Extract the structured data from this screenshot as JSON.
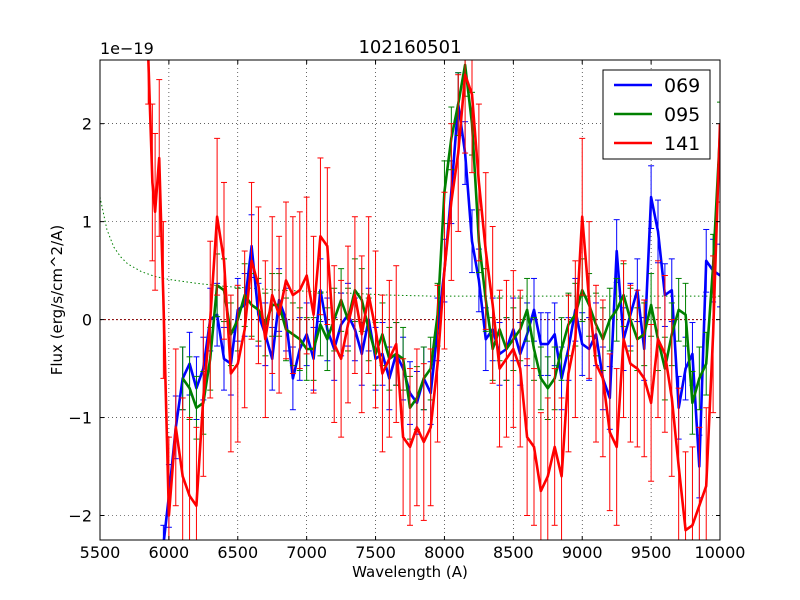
{
  "chart_data": {
    "type": "line",
    "title": "102160501",
    "xlabel": "Wavelength (A)",
    "ylabel": "Flux (erg/s/cm^2/A)",
    "offset_label": "1e−19",
    "xlim": [
      5500,
      10000
    ],
    "ylim": [
      -2.25,
      2.65
    ],
    "x_ticks": [
      5500,
      6000,
      6500,
      7000,
      7500,
      8000,
      8500,
      9000,
      9500,
      10000
    ],
    "y_ticks": [
      -2,
      -1,
      0,
      1,
      2
    ],
    "grid": true,
    "legend_position": "top-right",
    "zero_line": {
      "y": 0,
      "color": "#8b0000"
    },
    "noise_curve": {
      "color": "#008000",
      "x": [
        5500,
        5550,
        5600,
        5650,
        5700,
        5800,
        5900,
        6000,
        6200,
        6400,
        6600,
        6800,
        7000,
        7300,
        7600,
        7900,
        8100,
        8300,
        8600,
        9000,
        9400,
        9800,
        10000
      ],
      "y": [
        1.25,
        0.92,
        0.74,
        0.64,
        0.57,
        0.49,
        0.44,
        0.41,
        0.37,
        0.34,
        0.32,
        0.3,
        0.29,
        0.27,
        0.25,
        0.24,
        0.24,
        0.24,
        0.24,
        0.24,
        0.24,
        0.24,
        0.24
      ]
    },
    "series": [
      {
        "name": "069",
        "color": "#0000ff",
        "x": [
          5960,
          6000,
          6050,
          6100,
          6150,
          6200,
          6250,
          6300,
          6350,
          6400,
          6450,
          6500,
          6550,
          6600,
          6650,
          6700,
          6750,
          6800,
          6850,
          6900,
          6950,
          7000,
          7050,
          7100,
          7150,
          7200,
          7250,
          7300,
          7350,
          7400,
          7450,
          7500,
          7550,
          7600,
          7650,
          7700,
          7750,
          7800,
          7850,
          7900,
          7950,
          8000,
          8050,
          8100,
          8150,
          8200,
          8250,
          8300,
          8350,
          8400,
          8450,
          8500,
          8550,
          8600,
          8650,
          8700,
          8750,
          8800,
          8850,
          8900,
          8950,
          9000,
          9050,
          9100,
          9150,
          9200,
          9250,
          9300,
          9350,
          9400,
          9450,
          9500,
          9550,
          9600,
          9650,
          9700,
          9750,
          9800,
          9850,
          9900,
          9950,
          10000
        ],
        "y": [
          -2.3,
          -1.8,
          -1.1,
          -0.6,
          -0.45,
          -0.7,
          -0.5,
          0.0,
          0.05,
          -0.4,
          -0.45,
          0.1,
          0.15,
          0.75,
          0.05,
          -0.15,
          -0.4,
          0.2,
          0.0,
          -0.6,
          -0.3,
          -0.15,
          -0.4,
          0.3,
          -0.1,
          -0.3,
          -0.05,
          0.05,
          -0.1,
          -0.35,
          0.0,
          -0.4,
          -0.35,
          -0.6,
          -0.35,
          -0.5,
          -0.75,
          -0.85,
          -0.6,
          -0.75,
          -0.1,
          0.5,
          1.3,
          2.2,
          1.7,
          0.8,
          0.4,
          -0.2,
          -0.1,
          -0.35,
          -0.3,
          -0.1,
          -0.35,
          -0.15,
          0.1,
          -0.25,
          -0.25,
          -0.15,
          -0.6,
          -0.3,
          0.1,
          -0.25,
          -0.3,
          -0.15,
          -0.6,
          -0.8,
          0.7,
          -0.2,
          0.05,
          0.3,
          -0.3,
          1.25,
          0.9,
          0.25,
          0.3,
          -0.9,
          -0.5,
          -0.35,
          -1.5,
          0.6,
          0.5,
          0.45
        ],
        "err": [
          0.2,
          0.32,
          0.32,
          0.32,
          0.32,
          0.32,
          0.32,
          0.32,
          0.32,
          0.32,
          0.32,
          0.32,
          0.32,
          0.32,
          0.32,
          0.32,
          0.32,
          0.32,
          0.32,
          0.32,
          0.32,
          0.32,
          0.32,
          0.32,
          0.32,
          0.32,
          0.32,
          0.32,
          0.32,
          0.32,
          0.32,
          0.32,
          0.32,
          0.32,
          0.32,
          0.32,
          0.32,
          0.32,
          0.32,
          0.32,
          0.32,
          0.32,
          0.32,
          0.32,
          0.32,
          0.32,
          0.32,
          0.32,
          0.32,
          0.32,
          0.32,
          0.32,
          0.32,
          0.32,
          0.32,
          0.32,
          0.32,
          0.32,
          0.32,
          0.32,
          0.32,
          0.32,
          0.32,
          0.32,
          0.32,
          0.32,
          0.32,
          0.32,
          0.32,
          0.32,
          0.32,
          0.32,
          0.32,
          0.32,
          0.32,
          0.32,
          0.32,
          0.32,
          0.32,
          0.32,
          0.32,
          0.32
        ]
      },
      {
        "name": "095",
        "color": "#008000",
        "x": [
          6100,
          6150,
          6200,
          6250,
          6300,
          6350,
          6400,
          6450,
          6500,
          6550,
          6600,
          6650,
          6700,
          6750,
          6800,
          6850,
          6900,
          6950,
          7000,
          7050,
          7100,
          7150,
          7200,
          7250,
          7300,
          7350,
          7400,
          7450,
          7500,
          7550,
          7600,
          7650,
          7700,
          7750,
          7800,
          7850,
          7900,
          7950,
          8000,
          8050,
          8100,
          8150,
          8200,
          8250,
          8300,
          8350,
          8400,
          8450,
          8500,
          8550,
          8600,
          8650,
          8700,
          8750,
          8800,
          8850,
          8900,
          8950,
          9000,
          9050,
          9100,
          9150,
          9200,
          9250,
          9300,
          9350,
          9400,
          9450,
          9500,
          9550,
          9600,
          9650,
          9700,
          9750,
          9800,
          9850,
          9900,
          9950,
          10000
        ],
        "y": [
          -0.6,
          -0.7,
          -0.9,
          -0.85,
          -0.4,
          0.35,
          0.3,
          -0.15,
          0.0,
          0.25,
          0.15,
          0.1,
          -0.05,
          0.15,
          0.15,
          -0.1,
          -0.15,
          -0.2,
          -0.3,
          -0.3,
          -0.05,
          -0.2,
          0.0,
          0.2,
          0.0,
          0.3,
          0.2,
          -0.1,
          -0.35,
          -0.15,
          -0.4,
          -0.35,
          -0.4,
          -0.9,
          -0.8,
          -0.6,
          -0.5,
          0.05,
          1.3,
          1.85,
          2.2,
          2.6,
          2.0,
          0.8,
          0.2,
          -0.3,
          -0.1,
          -0.3,
          -0.2,
          -0.1,
          0.1,
          -0.3,
          -0.6,
          -0.7,
          -0.6,
          -0.3,
          -0.05,
          0.05,
          0.3,
          0.15,
          -0.05,
          -0.2,
          0.0,
          0.1,
          0.25,
          0.0,
          -0.2,
          -0.15,
          0.15,
          -0.2,
          -0.5,
          -0.15,
          0.1,
          0.05,
          -0.85,
          -0.6,
          -0.45,
          0.55,
          1.9
        ],
        "err": [
          0.32,
          0.32,
          0.32,
          0.32,
          0.32,
          0.32,
          0.32,
          0.32,
          0.32,
          0.32,
          0.32,
          0.32,
          0.32,
          0.32,
          0.32,
          0.32,
          0.32,
          0.32,
          0.32,
          0.32,
          0.32,
          0.32,
          0.32,
          0.32,
          0.32,
          0.32,
          0.32,
          0.32,
          0.32,
          0.32,
          0.32,
          0.32,
          0.32,
          0.32,
          0.32,
          0.32,
          0.32,
          0.32,
          0.32,
          0.32,
          0.32,
          0.32,
          0.32,
          0.32,
          0.32,
          0.32,
          0.32,
          0.32,
          0.32,
          0.32,
          0.32,
          0.32,
          0.32,
          0.32,
          0.32,
          0.32,
          0.32,
          0.32,
          0.32,
          0.32,
          0.32,
          0.32,
          0.32,
          0.32,
          0.32,
          0.32,
          0.32,
          0.32,
          0.32,
          0.32,
          0.32,
          0.32,
          0.32,
          0.32,
          0.32,
          0.32,
          0.32,
          0.32,
          0.32
        ]
      },
      {
        "name": "141",
        "color": "#ff0000",
        "x": [
          5850,
          5880,
          5900,
          5930,
          5960,
          6000,
          6050,
          6100,
          6150,
          6200,
          6250,
          6300,
          6350,
          6400,
          6450,
          6500,
          6550,
          6600,
          6650,
          6700,
          6750,
          6800,
          6850,
          6900,
          6950,
          7000,
          7050,
          7100,
          7150,
          7200,
          7250,
          7300,
          7350,
          7400,
          7450,
          7500,
          7550,
          7600,
          7650,
          7700,
          7750,
          7800,
          7850,
          7900,
          7950,
          8000,
          8050,
          8100,
          8150,
          8200,
          8250,
          8300,
          8350,
          8400,
          8450,
          8500,
          8550,
          8600,
          8650,
          8700,
          8750,
          8800,
          8850,
          8900,
          8950,
          9000,
          9050,
          9100,
          9150,
          9200,
          9250,
          9300,
          9350,
          9400,
          9450,
          9500,
          9550,
          9600,
          9650,
          9700,
          9750,
          9800,
          9850,
          9900,
          9950,
          10000
        ],
        "y": [
          2.7,
          1.4,
          1.1,
          1.65,
          0.2,
          -2.0,
          -1.1,
          -1.6,
          -1.8,
          -1.9,
          -0.8,
          0.0,
          1.05,
          0.6,
          -0.55,
          -0.45,
          -0.1,
          0.6,
          0.35,
          -0.2,
          0.25,
          0.05,
          0.4,
          0.25,
          0.3,
          0.45,
          0.05,
          0.85,
          0.75,
          -0.25,
          -0.4,
          -0.05,
          0.25,
          -0.15,
          0.25,
          -0.1,
          -0.55,
          -0.4,
          -0.25,
          -1.2,
          -1.3,
          -1.1,
          -1.25,
          -1.1,
          -0.45,
          0.5,
          1.2,
          1.7,
          2.5,
          2.3,
          1.4,
          0.7,
          0.15,
          -0.5,
          -0.4,
          -0.3,
          -0.5,
          -1.2,
          -1.3,
          -1.75,
          -1.6,
          -1.3,
          -1.6,
          -0.55,
          -0.2,
          1.05,
          0.2,
          -0.45,
          -0.6,
          -1.15,
          -1.3,
          -0.2,
          -0.45,
          -0.5,
          -0.6,
          -0.85,
          -0.2,
          -0.35,
          -0.8,
          -1.5,
          -2.15,
          -2.1,
          -1.9,
          -1.7,
          -0.15,
          2.0
        ],
        "err": [
          0.5,
          0.8,
          0.8,
          0.8,
          0.8,
          0.8,
          0.8,
          0.8,
          0.8,
          0.8,
          0.8,
          0.8,
          0.8,
          0.8,
          0.8,
          0.8,
          0.8,
          0.8,
          0.8,
          0.8,
          0.8,
          0.8,
          0.8,
          0.8,
          0.8,
          0.8,
          0.8,
          0.8,
          0.8,
          0.8,
          0.8,
          0.8,
          0.8,
          0.8,
          0.8,
          0.8,
          0.8,
          0.8,
          0.8,
          0.8,
          0.8,
          0.8,
          0.8,
          0.8,
          0.8,
          0.8,
          0.8,
          0.8,
          0.8,
          0.8,
          0.8,
          0.8,
          0.8,
          0.8,
          0.8,
          0.8,
          0.8,
          0.8,
          0.8,
          0.8,
          0.8,
          0.8,
          0.8,
          0.8,
          0.8,
          0.8,
          0.8,
          0.8,
          0.8,
          0.8,
          0.8,
          0.8,
          0.8,
          0.8,
          0.8,
          0.8,
          0.8,
          0.8,
          0.8,
          0.8,
          0.8,
          0.8,
          0.8,
          0.8,
          0.8,
          0.8
        ]
      }
    ]
  }
}
